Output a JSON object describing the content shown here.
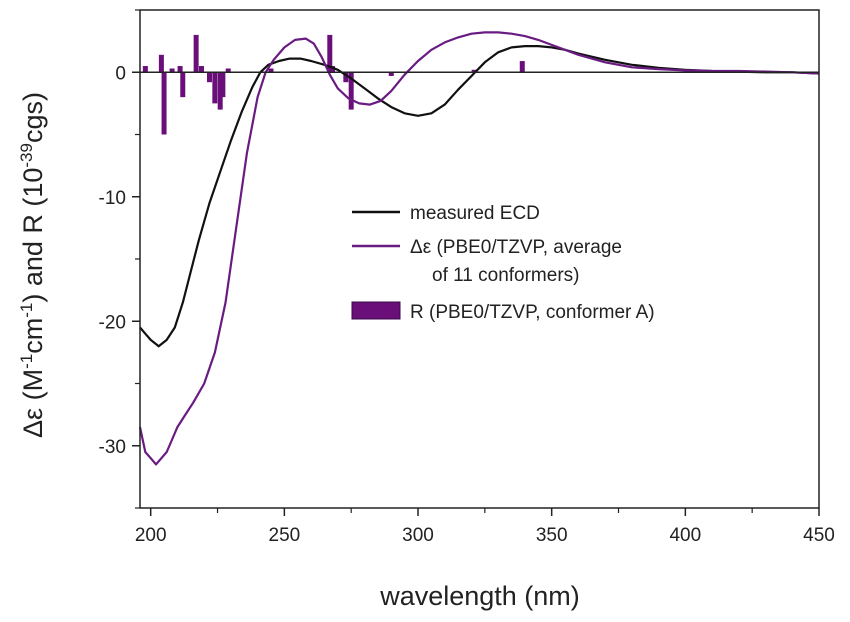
{
  "chart_data": {
    "type": "line",
    "xlabel": "wavelength (nm)",
    "ylabel_parts": [
      "Δε (M",
      "-1",
      "cm",
      "-1",
      ") and R (10",
      "-39",
      "cgs)"
    ],
    "xlim": [
      196,
      450
    ],
    "ylim": [
      -35,
      5
    ],
    "xticks": [
      200,
      250,
      300,
      350,
      400,
      450
    ],
    "yticks": [
      0,
      -10,
      -20,
      -30
    ],
    "grid": false,
    "legend_position": "center-right",
    "colors": {
      "measured": "#111111",
      "calculated": "#6a1b82",
      "bars": "#6a0f7a",
      "axis": "#222222"
    },
    "legend": {
      "measured": "measured ECD",
      "calc_line1": "Δε (PBE0/TZVP, average",
      "calc_line2": "of 11 conformers)",
      "bars": "R (PBE0/TZVP, conformer A)"
    },
    "series": [
      {
        "name": "measured ECD",
        "x": [
          196,
          198,
          200,
          203,
          206,
          209,
          212,
          215,
          218,
          222,
          226,
          230,
          234,
          238,
          241,
          244,
          248,
          252,
          256,
          260,
          265,
          270,
          275,
          280,
          285,
          290,
          295,
          300,
          305,
          310,
          315,
          320,
          325,
          330,
          335,
          340,
          345,
          350,
          355,
          360,
          370,
          380,
          390,
          400,
          410,
          420,
          430,
          440,
          450
        ],
        "y": [
          -20.5,
          -21,
          -21.5,
          -22,
          -21.5,
          -20.5,
          -18.5,
          -16,
          -13.5,
          -10.5,
          -8,
          -5.5,
          -3.2,
          -1.2,
          0,
          0.6,
          0.9,
          1.1,
          1.1,
          0.9,
          0.6,
          0.2,
          -0.5,
          -1.3,
          -2.1,
          -2.8,
          -3.3,
          -3.5,
          -3.3,
          -2.6,
          -1.4,
          -0.3,
          0.8,
          1.6,
          2,
          2.1,
          2.1,
          2,
          1.8,
          1.5,
          1,
          0.6,
          0.35,
          0.2,
          0.1,
          0.05,
          0,
          0,
          -0.1
        ]
      },
      {
        "name": "Δε (PBE0/TZVP, average of 11 conformers)",
        "x": [
          196,
          198,
          200,
          202,
          204,
          206,
          208,
          210,
          213,
          216,
          220,
          224,
          228,
          232,
          236,
          240,
          243,
          246,
          250,
          254,
          258,
          261,
          264,
          267,
          270,
          274,
          278,
          282,
          286,
          290,
          295,
          300,
          305,
          310,
          315,
          320,
          325,
          330,
          335,
          340,
          345,
          350,
          355,
          360,
          370,
          380,
          390,
          400,
          410,
          420,
          430,
          440,
          450
        ],
        "y": [
          -28.5,
          -30.5,
          -31,
          -31.5,
          -31,
          -30.5,
          -29.5,
          -28.5,
          -27.5,
          -26.5,
          -25,
          -22.5,
          -18.5,
          -12.5,
          -6.5,
          -2,
          0,
          1,
          2,
          2.6,
          2.7,
          2.3,
          1.2,
          -0.2,
          -1.3,
          -2.1,
          -2.5,
          -2.6,
          -2.3,
          -1.5,
          -0.2,
          0.9,
          1.8,
          2.4,
          2.8,
          3.1,
          3.2,
          3.2,
          3.1,
          2.9,
          2.6,
          2.2,
          1.8,
          1.4,
          0.8,
          0.4,
          0.25,
          0.15,
          0.1,
          0.1,
          0.05,
          0,
          -0.1
        ]
      }
    ],
    "bars": {
      "name": "R (PBE0/TZVP, conformer A)",
      "x": [
        198,
        204,
        205,
        208,
        211,
        212,
        217,
        219,
        222,
        224,
        226,
        227,
        229,
        245,
        267,
        268,
        273,
        275,
        290,
        321,
        339
      ],
      "values": [
        0.5,
        1.4,
        -5,
        0.3,
        0.5,
        -2,
        3,
        0.5,
        -0.8,
        -2.5,
        -3,
        -2,
        0.3,
        0.3,
        3,
        0.5,
        -0.8,
        -3,
        -0.3,
        0.2,
        0.9
      ]
    }
  }
}
